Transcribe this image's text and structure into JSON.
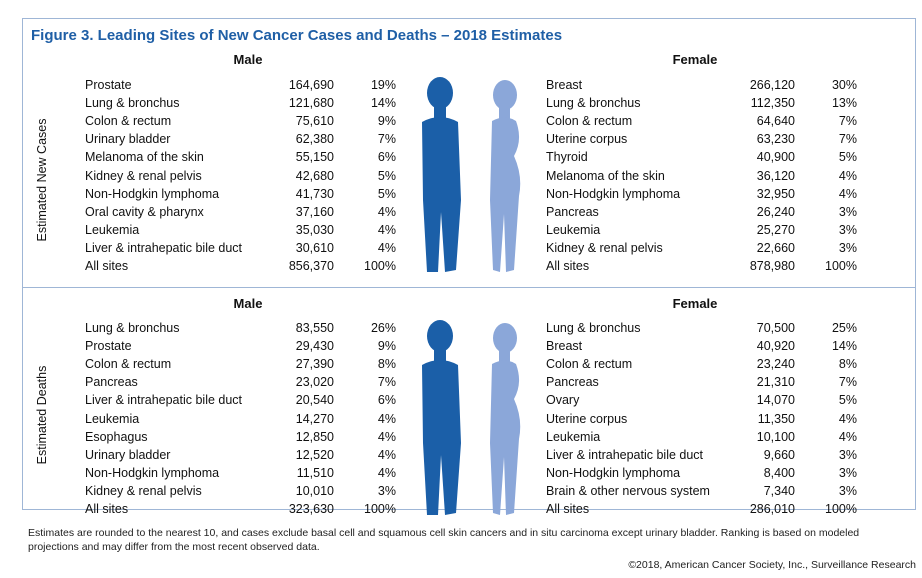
{
  "title": "Figure 3. Leading Sites of New Cancer Cases and Deaths – 2018 Estimates",
  "sections": [
    {
      "label": "Estimated New Cases",
      "male": {
        "heading": "Male",
        "rows": [
          [
            "Prostate",
            "164,690",
            "19%"
          ],
          [
            "Lung & bronchus",
            "121,680",
            "14%"
          ],
          [
            "Colon & rectum",
            "75,610",
            "9%"
          ],
          [
            "Urinary bladder",
            "62,380",
            "7%"
          ],
          [
            "Melanoma of the skin",
            "55,150",
            "6%"
          ],
          [
            "Kidney & renal pelvis",
            "42,680",
            "5%"
          ],
          [
            "Non-Hodgkin lymphoma",
            "41,730",
            "5%"
          ],
          [
            "Oral cavity & pharynx",
            "37,160",
            "4%"
          ],
          [
            "Leukemia",
            "35,030",
            "4%"
          ],
          [
            "Liver & intrahepatic bile duct",
            "30,610",
            "4%"
          ],
          [
            "All sites",
            "856,370",
            "100%"
          ]
        ]
      },
      "female": {
        "heading": "Female",
        "rows": [
          [
            "Breast",
            "266,120",
            "30%"
          ],
          [
            "Lung & bronchus",
            "112,350",
            "13%"
          ],
          [
            "Colon & rectum",
            "64,640",
            "7%"
          ],
          [
            "Uterine corpus",
            "63,230",
            "7%"
          ],
          [
            "Thyroid",
            "40,900",
            "5%"
          ],
          [
            "Melanoma of the skin",
            "36,120",
            "4%"
          ],
          [
            "Non-Hodgkin lymphoma",
            "32,950",
            "4%"
          ],
          [
            "Pancreas",
            "26,240",
            "3%"
          ],
          [
            "Leukemia",
            "25,270",
            "3%"
          ],
          [
            "Kidney & renal pelvis",
            "22,660",
            "3%"
          ],
          [
            "All sites",
            "878,980",
            "100%"
          ]
        ]
      }
    },
    {
      "label": "Estimated Deaths",
      "male": {
        "heading": "Male",
        "rows": [
          [
            "Lung & bronchus",
            "83,550",
            "26%"
          ],
          [
            "Prostate",
            "29,430",
            "9%"
          ],
          [
            "Colon & rectum",
            "27,390",
            "8%"
          ],
          [
            "Pancreas",
            "23,020",
            "7%"
          ],
          [
            "Liver & intrahepatic bile duct",
            "20,540",
            "6%"
          ],
          [
            "Leukemia",
            "14,270",
            "4%"
          ],
          [
            "Esophagus",
            "12,850",
            "4%"
          ],
          [
            "Urinary bladder",
            "12,520",
            "4%"
          ],
          [
            "Non-Hodgkin lymphoma",
            "11,510",
            "4%"
          ],
          [
            "Kidney & renal pelvis",
            "10,010",
            "3%"
          ],
          [
            "All sites",
            "323,630",
            "100%"
          ]
        ]
      },
      "female": {
        "heading": "Female",
        "rows": [
          [
            "Lung & bronchus",
            "70,500",
            "25%"
          ],
          [
            "Breast",
            "40,920",
            "14%"
          ],
          [
            "Colon & rectum",
            "23,240",
            "8%"
          ],
          [
            "Pancreas",
            "21,310",
            "7%"
          ],
          [
            "Ovary",
            "14,070",
            "5%"
          ],
          [
            "Uterine corpus",
            "11,350",
            "4%"
          ],
          [
            "Leukemia",
            "10,100",
            "4%"
          ],
          [
            "Liver & intrahepatic bile duct",
            "9,660",
            "3%"
          ],
          [
            "Non-Hodgkin lymphoma",
            "8,400",
            "3%"
          ],
          [
            "Brain & other nervous system",
            "7,340",
            "3%"
          ],
          [
            "All sites",
            "286,010",
            "100%"
          ]
        ]
      }
    }
  ],
  "footnote": "Estimates are rounded to the nearest 10, and cases exclude basal cell and squamous cell skin cancers and in situ carcinoma except urinary bladder. Ranking is based on modeled projections and may differ from the most recent observed data.",
  "copyright": "©2018, American Cancer Society, Inc., Surveillance Research"
}
